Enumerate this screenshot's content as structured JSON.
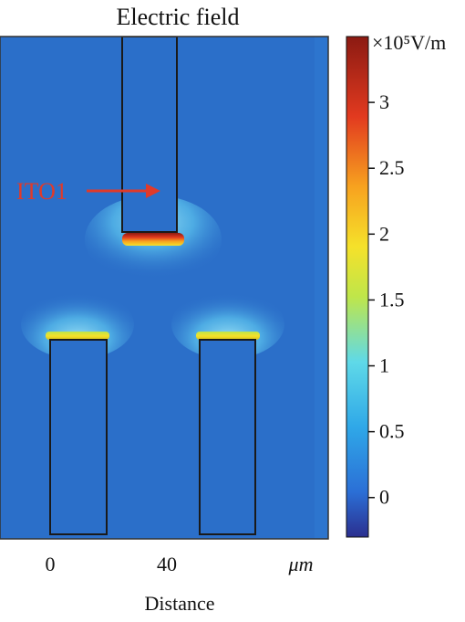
{
  "title": "Electric field",
  "annotation": {
    "text": "ITO1",
    "color": "#e03a2a"
  },
  "x_axis": {
    "label": "Distance",
    "unit": "μm",
    "ticks": [
      {
        "value": 0,
        "label": "0"
      },
      {
        "value": 40,
        "label": "40"
      }
    ]
  },
  "colorbar": {
    "unit": "×10⁵V/m",
    "range": [
      -0.3,
      3.5
    ],
    "ticks": [
      {
        "value": 0,
        "label": "0"
      },
      {
        "value": 0.5,
        "label": "0.5"
      },
      {
        "value": 1,
        "label": "1"
      },
      {
        "value": 1.5,
        "label": "1.5"
      },
      {
        "value": 2,
        "label": "2"
      },
      {
        "value": 2.5,
        "label": "2.5"
      },
      {
        "value": 3,
        "label": "3"
      }
    ],
    "colors": [
      "#2b2f8f",
      "#2b6fd6",
      "#2fa8e8",
      "#5fd9e8",
      "#bfe64a",
      "#f5e12a",
      "#f7a21f",
      "#e23a1f",
      "#8b1a12"
    ]
  },
  "background_color": "#2b6fc9",
  "electrodes": [
    {
      "name": "top",
      "label": "ITO1"
    },
    {
      "name": "bottom-left",
      "label": ""
    },
    {
      "name": "bottom-right",
      "label": ""
    }
  ]
}
